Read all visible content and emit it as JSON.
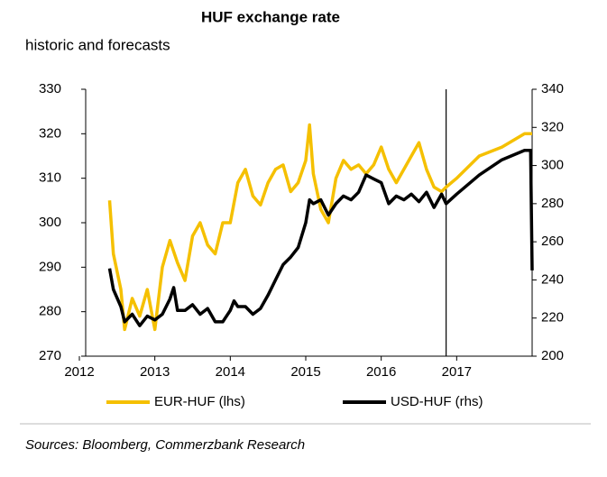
{
  "chart_data": {
    "type": "line",
    "title": "HUF exchange rate",
    "subtitle": "historic and forecasts",
    "source": "Sources: Bloomberg, Commerzbank Research",
    "xlim": [
      2012,
      2018
    ],
    "xticks": [
      2012,
      2013,
      2014,
      2015,
      2016,
      2017
    ],
    "ylim": [
      270,
      330
    ],
    "yticks": [
      270,
      280,
      290,
      300,
      310,
      320,
      330
    ],
    "y2lim": [
      200,
      340
    ],
    "y2ticks": [
      200,
      220,
      240,
      260,
      280,
      300,
      320,
      340
    ],
    "forecast_start": 2016.86,
    "series": [
      {
        "name": "EUR-HUF (lhs)",
        "color": "#f5c000",
        "axis": "y",
        "x": [
          2012.4,
          2012.45,
          2012.55,
          2012.6,
          2012.7,
          2012.8,
          2012.9,
          2013.0,
          2013.1,
          2013.2,
          2013.3,
          2013.4,
          2013.5,
          2013.6,
          2013.7,
          2013.8,
          2013.9,
          2014.0,
          2014.1,
          2014.2,
          2014.3,
          2014.4,
          2014.5,
          2014.6,
          2014.7,
          2014.8,
          2014.9,
          2015.0,
          2015.05,
          2015.1,
          2015.2,
          2015.3,
          2015.4,
          2015.5,
          2015.6,
          2015.7,
          2015.8,
          2015.9,
          2016.0,
          2016.1,
          2016.2,
          2016.3,
          2016.4,
          2016.5,
          2016.6,
          2016.7,
          2016.8,
          2016.86,
          2017.0,
          2017.3,
          2017.6,
          2017.9,
          2018.0
        ],
        "values": [
          305,
          293,
          285,
          276,
          283,
          279,
          285,
          276,
          290,
          296,
          291,
          287,
          297,
          300,
          295,
          293,
          300,
          300,
          309,
          312,
          306,
          304,
          309,
          312,
          313,
          307,
          309,
          314,
          322,
          311,
          303,
          300,
          310,
          314,
          312,
          313,
          311,
          313,
          317,
          312,
          309,
          312,
          315,
          318,
          312,
          308,
          307,
          308,
          310,
          315,
          317,
          320,
          320
        ]
      },
      {
        "name": "USD-HUF (rhs)",
        "color": "#000000",
        "axis": "y2",
        "x": [
          2012.4,
          2012.45,
          2012.55,
          2012.6,
          2012.7,
          2012.8,
          2012.9,
          2013.0,
          2013.1,
          2013.2,
          2013.25,
          2013.3,
          2013.4,
          2013.5,
          2013.6,
          2013.7,
          2013.8,
          2013.9,
          2014.0,
          2014.05,
          2014.1,
          2014.2,
          2014.3,
          2014.4,
          2014.5,
          2014.6,
          2014.7,
          2014.8,
          2014.9,
          2015.0,
          2015.05,
          2015.1,
          2015.2,
          2015.3,
          2015.4,
          2015.5,
          2015.6,
          2015.7,
          2015.8,
          2015.9,
          2016.0,
          2016.1,
          2016.2,
          2016.3,
          2016.4,
          2016.5,
          2016.6,
          2016.7,
          2016.8,
          2016.86,
          2017.0,
          2017.3,
          2017.6,
          2017.9,
          2017.98,
          2018.0
        ],
        "values": [
          246,
          235,
          226,
          218,
          222,
          216,
          221,
          219,
          222,
          230,
          236,
          224,
          224,
          227,
          222,
          225,
          218,
          218,
          224,
          229,
          226,
          226,
          222,
          225,
          232,
          240,
          248,
          252,
          257,
          270,
          282,
          280,
          282,
          274,
          280,
          284,
          282,
          286,
          295,
          293,
          291,
          280,
          284,
          282,
          285,
          281,
          286,
          278,
          285,
          280,
          285,
          295,
          303,
          308,
          308,
          245
        ]
      }
    ]
  }
}
